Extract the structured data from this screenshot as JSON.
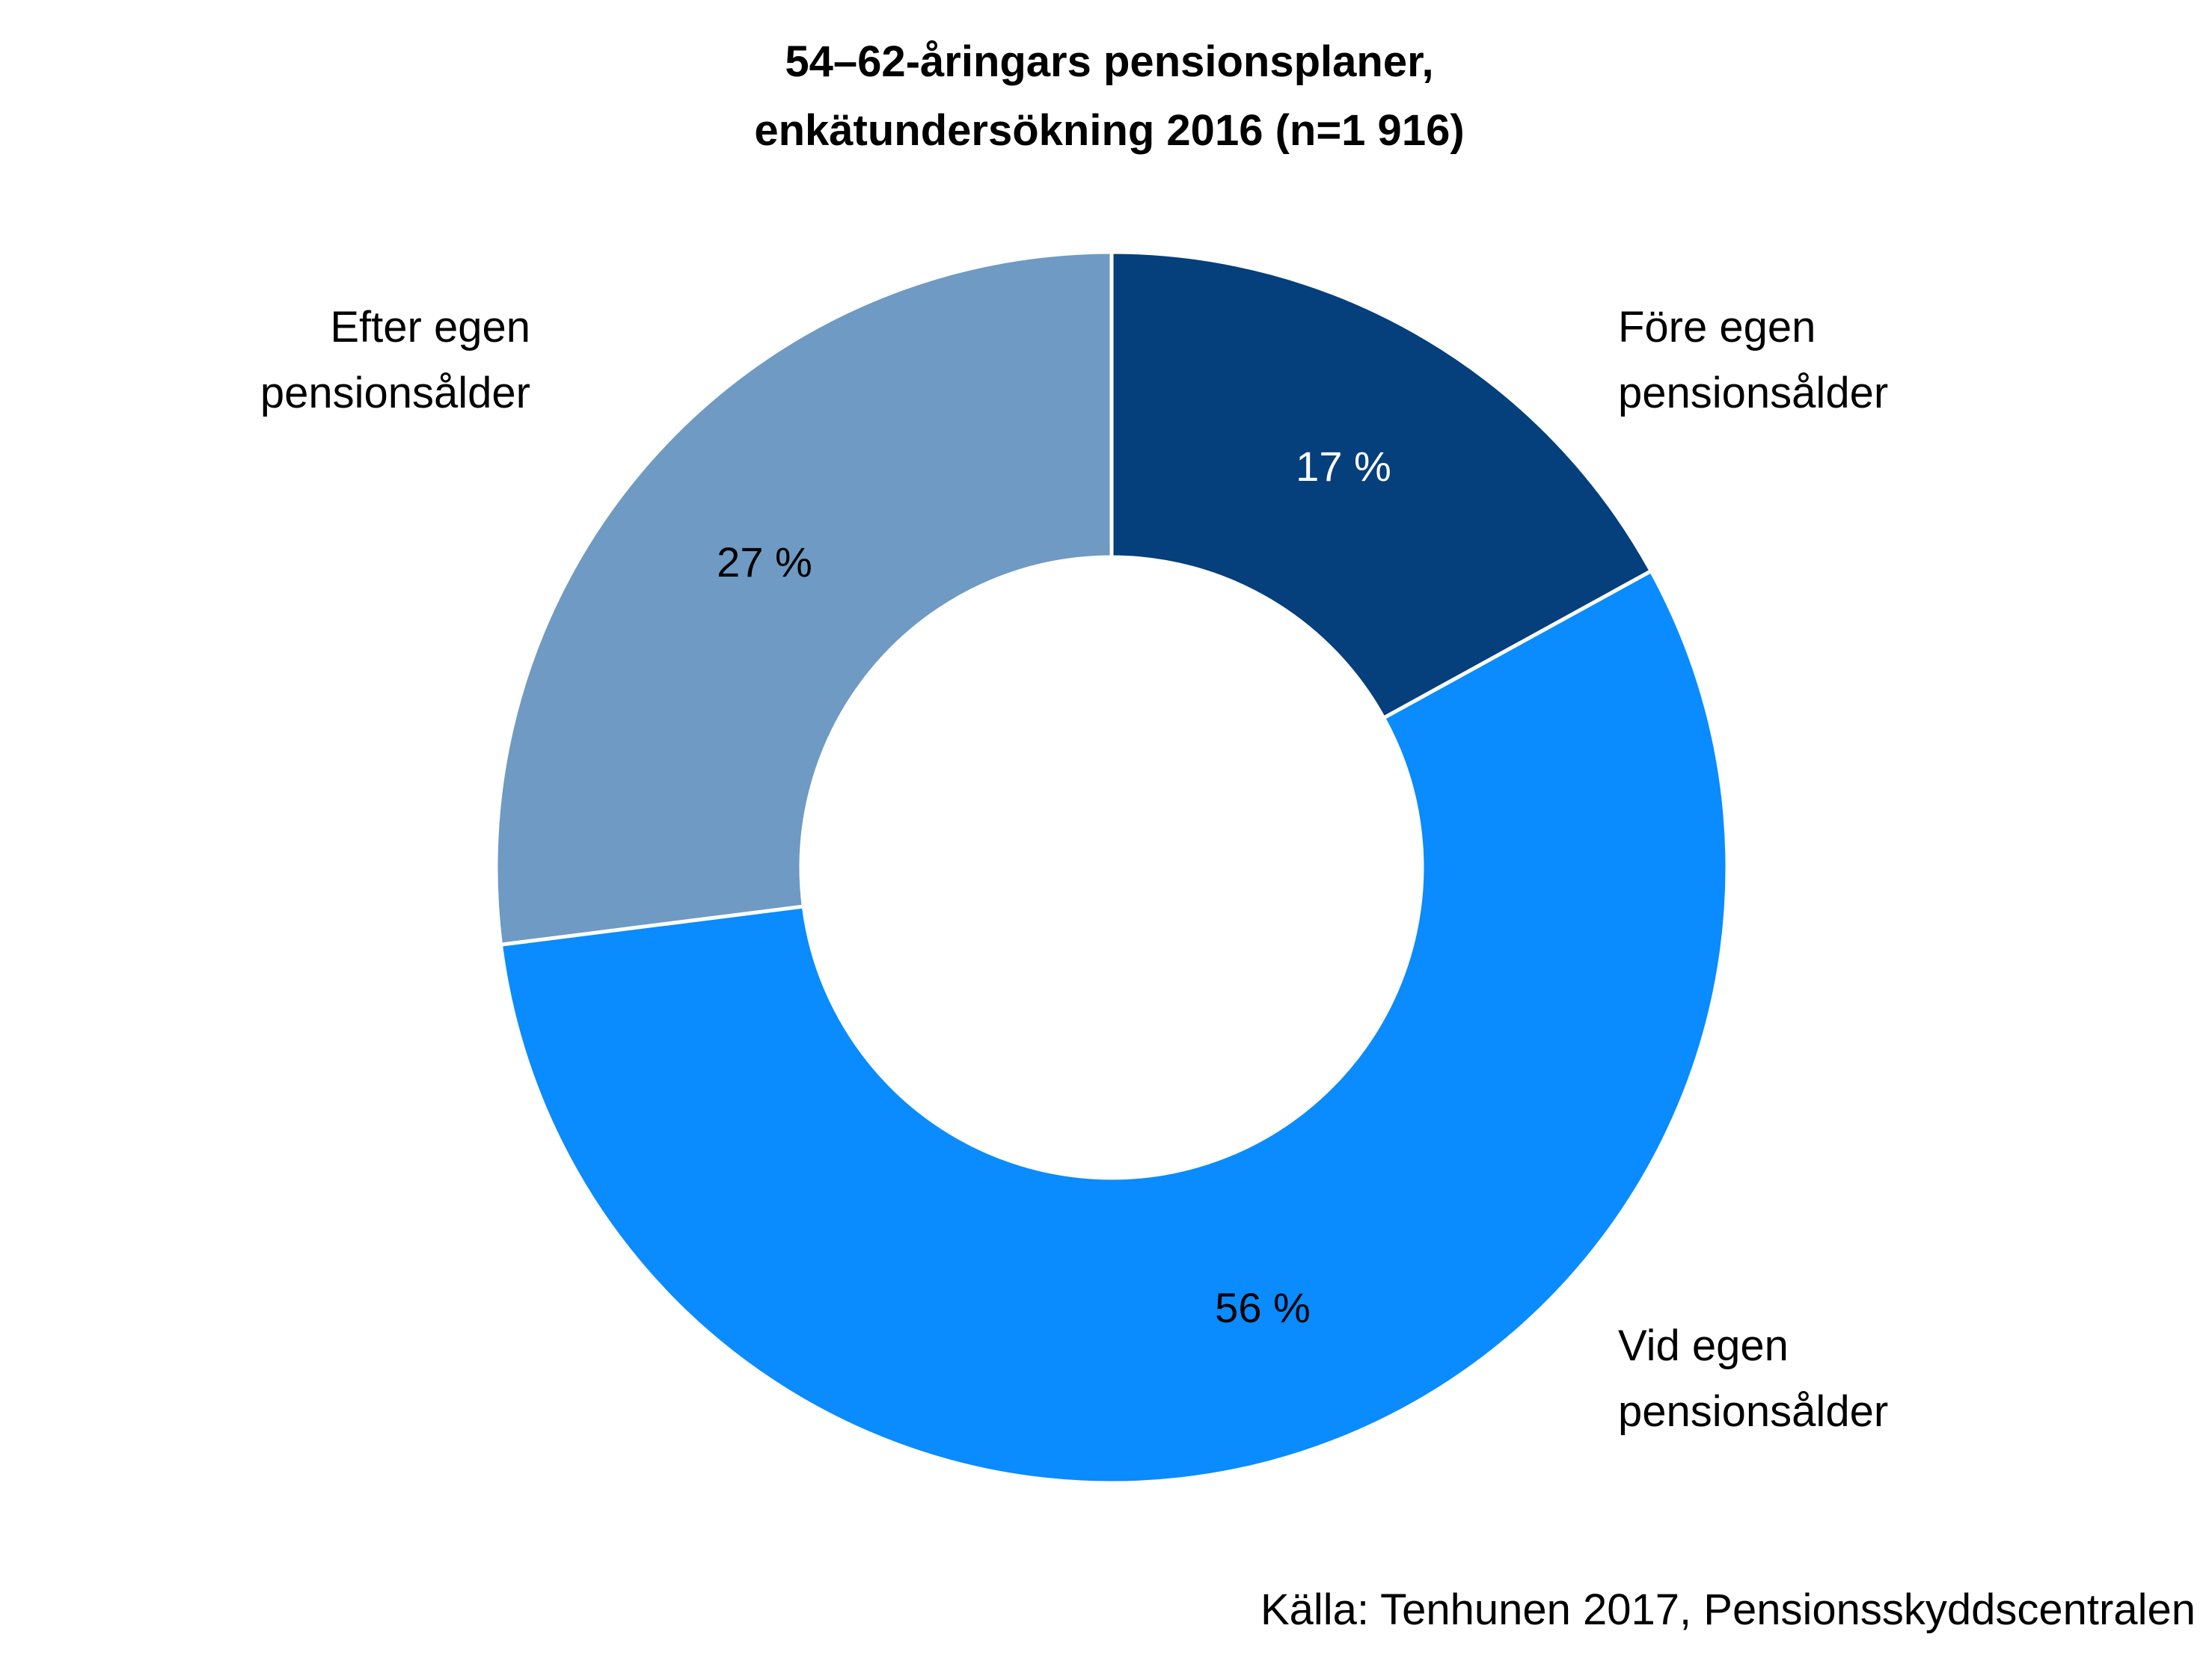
{
  "chart_data": {
    "type": "pie",
    "donut": true,
    "title_lines": [
      "54–62-åringars pensionsplaner,",
      "enkätundersökning 2016 (n=1 916)"
    ],
    "slices": [
      {
        "label_lines": [
          "Före egen",
          "pensionsålder"
        ],
        "value": 17,
        "value_label": "17 %",
        "color": "#053f7c",
        "value_text_color": "#ffffff"
      },
      {
        "label_lines": [
          "Vid egen",
          "pensionsålder"
        ],
        "value": 56,
        "value_label": "56 %",
        "color": "#0a8bfe",
        "value_text_color": "#000000"
      },
      {
        "label_lines": [
          "Efter egen",
          "pensionsålder"
        ],
        "value": 27,
        "value_label": "27 %",
        "color": "#6f9ac3",
        "value_text_color": "#000000"
      }
    ],
    "legend": "none",
    "start_angle": "12 o'clock",
    "direction": "clockwise"
  },
  "source": "Källa: Tenhunen 2017, Pensionsskyddscentralen"
}
